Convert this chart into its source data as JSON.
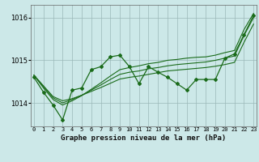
{
  "title": "Graphe pression niveau de la mer (hPa)",
  "bg_color": "#cce8e8",
  "line_color": "#1a6b1a",
  "yticks": [
    1014,
    1015,
    1016
  ],
  "ylim": [
    1013.45,
    1016.3
  ],
  "xlim": [
    -0.3,
    23.3
  ],
  "x_labels": [
    "0",
    "1",
    "2",
    "3",
    "4",
    "5",
    "6",
    "7",
    "8",
    "9",
    "10",
    "11",
    "12",
    "13",
    "14",
    "15",
    "16",
    "17",
    "18",
    "19",
    "20",
    "21",
    "22",
    "23"
  ],
  "smooth1": [
    1014.65,
    1014.4,
    1014.15,
    1014.05,
    1014.1,
    1014.18,
    1014.27,
    1014.36,
    1014.46,
    1014.56,
    1014.6,
    1014.63,
    1014.67,
    1014.71,
    1014.75,
    1014.77,
    1014.79,
    1014.81,
    1014.83,
    1014.86,
    1014.9,
    1014.95,
    1015.42,
    1015.85
  ],
  "smooth2": [
    1014.65,
    1014.38,
    1014.12,
    1014.0,
    1014.08,
    1014.18,
    1014.3,
    1014.42,
    1014.55,
    1014.67,
    1014.72,
    1014.75,
    1014.8,
    1014.83,
    1014.87,
    1014.9,
    1014.92,
    1014.94,
    1014.96,
    1015.0,
    1015.05,
    1015.1,
    1015.58,
    1016.0
  ],
  "smooth3": [
    1014.65,
    1014.35,
    1014.08,
    1013.95,
    1014.05,
    1014.17,
    1014.32,
    1014.47,
    1014.63,
    1014.78,
    1014.83,
    1014.87,
    1014.92,
    1014.95,
    1015.0,
    1015.02,
    1015.05,
    1015.07,
    1015.08,
    1015.12,
    1015.18,
    1015.23,
    1015.72,
    1016.1
  ],
  "main_y": [
    1014.6,
    1014.25,
    1013.95,
    1013.6,
    1014.3,
    1014.35,
    1014.78,
    1014.85,
    1015.08,
    1015.12,
    1014.85,
    1014.45,
    1014.85,
    1014.72,
    1014.6,
    1014.45,
    1014.3,
    1014.55,
    1014.55,
    1014.55,
    1015.05,
    1015.15,
    1015.6,
    1016.05
  ]
}
